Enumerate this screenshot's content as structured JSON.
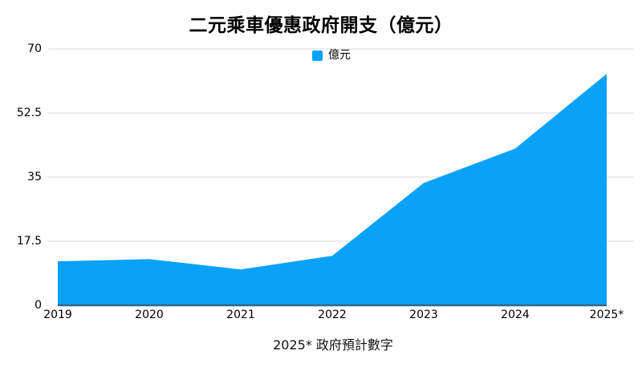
{
  "title": "二元乘車優惠政府開支（億元）",
  "legend": {
    "label": "億元",
    "swatch_color": "#0aa2f9"
  },
  "footnote": "2025* 政府預計數字",
  "chart_data": {
    "type": "area",
    "title": "二元乘車優惠政府開支（億元）",
    "categories": [
      "2019",
      "2020",
      "2021",
      "2022",
      "2023",
      "2024",
      "2025*"
    ],
    "series": [
      {
        "name": "億元",
        "values": [
          12,
          12.6,
          9.8,
          13.5,
          33.4,
          42.8,
          63.2
        ]
      }
    ],
    "xlabel": "",
    "ylabel": "",
    "ylim": [
      0,
      70
    ],
    "yticks": [
      0,
      17.5,
      35,
      52.5,
      70
    ],
    "ytick_labels": [
      "0",
      "17.5",
      "35",
      "52.5",
      "70"
    ],
    "grid": true,
    "legend_position": "top-center",
    "annotation": "2025* 政府預計數字",
    "colors": {
      "area_fill": "#0aa2f9",
      "baseline_stroke": "#336688",
      "gridline": "#d9d9d9",
      "text": "#000000",
      "background": "#ffffff"
    }
  }
}
